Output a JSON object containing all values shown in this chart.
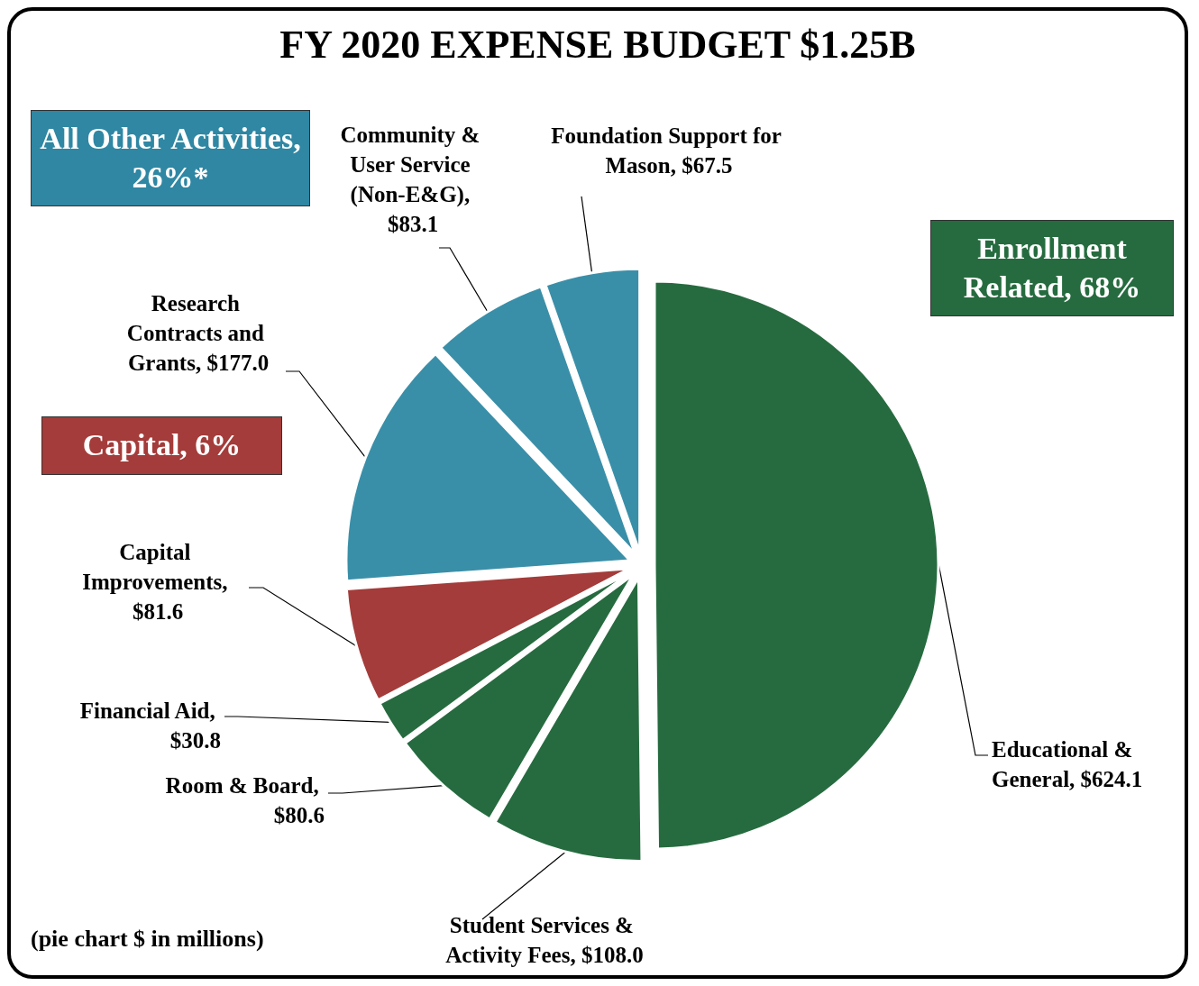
{
  "chart_data": {
    "type": "pie",
    "title": "FY 2020 EXPENSE BUDGET $1.25B",
    "categories": [
      "Educational & General, $624.1",
      "Student Services & Activity Fees, $108.0",
      "Room & Board, $80.6",
      "Financial Aid, $30.8",
      "Capital Improvements, $81.6",
      "Research Contracts and Grants, $177.0",
      "Community & User Service (Non-E&G), $83.1",
      "Foundation Support for Mason, $67.5"
    ],
    "values": [
      624.1,
      108.0,
      80.6,
      30.8,
      81.6,
      177.0,
      83.1,
      67.5
    ],
    "colors": [
      "#266b3f",
      "#266b3f",
      "#266b3f",
      "#266b3f",
      "#a33c3a",
      "#3a8fa8",
      "#3a8fa8",
      "#3a8fa8"
    ],
    "annotations": [
      "Enrollment Related, 68%",
      "All Other Activities, 26%*",
      "Capital, 6%",
      "(pie chart $ in millions)"
    ],
    "legend": false
  }
}
